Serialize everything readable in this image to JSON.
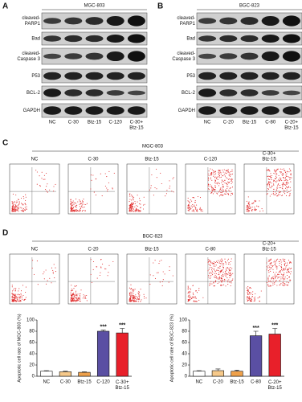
{
  "panels": [
    {
      "label": "A",
      "title": "MGC-803",
      "proteins": [
        [
          "cleaved-",
          "PARP1"
        ],
        [
          "Bad"
        ],
        [
          "cleaved-",
          "Caspase 3"
        ],
        [
          "P53"
        ],
        [
          "BCL-2"
        ],
        [
          "GAPDH"
        ]
      ],
      "lanes": [
        [
          "NC"
        ],
        [
          "C-30"
        ],
        [
          "Btz-15"
        ],
        [
          "C-120"
        ],
        [
          "C-30+",
          "Btz-15"
        ]
      ]
    },
    {
      "label": "B",
      "title": "BGC-823",
      "proteins": [
        [
          "cleaved-",
          "PARP1"
        ],
        [
          "Bad"
        ],
        [
          "cleaved-",
          "Caspase 3"
        ],
        [
          "P53"
        ],
        [
          "BCL-2"
        ],
        [
          "GAPDH"
        ]
      ],
      "lanes": [
        [
          "NC"
        ],
        [
          "C-20"
        ],
        [
          "Btz-15"
        ],
        [
          "C-80"
        ],
        [
          "C-20+",
          "Btz-15"
        ]
      ]
    }
  ],
  "flow": [
    {
      "label": "C",
      "title": "MGC-803",
      "plots": [
        [
          "NC"
        ],
        [
          "C-30"
        ],
        [
          "Btz-15"
        ],
        [
          "C-120"
        ],
        [
          "C-30+",
          "Btz-15"
        ]
      ]
    },
    {
      "label": "D",
      "title": "BGC-823",
      "plots": [
        [
          "NC"
        ],
        [
          "C-20"
        ],
        [
          "Btz-15"
        ],
        [
          "C-80"
        ],
        [
          "C-20+",
          "Btz-15"
        ]
      ]
    }
  ],
  "chart_data": [
    {
      "type": "bar",
      "y_label": "Apoptotic cell rate of MGC-803 (%)",
      "categories": [
        "NC",
        "C-30",
        "Btz-15",
        "C-120",
        "C-30+ Btz-15"
      ],
      "values": [
        9,
        8,
        7,
        80,
        77
      ],
      "errors": [
        1,
        1,
        1,
        2,
        8
      ],
      "colors": [
        "#ffffff",
        "#f6c98a",
        "#eea04a",
        "#5a4fa3",
        "#e8202a"
      ],
      "annotations": [
        {
          "category": "C-120",
          "text": "***"
        },
        {
          "category": "C-30+ Btz-15",
          "text": "***"
        }
      ],
      "ylim": [
        0,
        100
      ],
      "yticks": [
        0,
        20,
        40,
        60,
        80,
        100
      ]
    },
    {
      "type": "bar",
      "y_label": "Apoptotic cell rate of BGC-823 (%)",
      "categories": [
        "NC",
        "C-20",
        "Btz-15",
        "C-80",
        "C-20+ Btz-15"
      ],
      "values": [
        9,
        10,
        9,
        72,
        75
      ],
      "errors": [
        1,
        3,
        2,
        8,
        10
      ],
      "colors": [
        "#ffffff",
        "#f6c98a",
        "#eea04a",
        "#5a4fa3",
        "#e8202a"
      ],
      "annotations": [
        {
          "category": "C-80",
          "text": "***"
        },
        {
          "category": "C-20+ Btz-15",
          "text": "***"
        }
      ],
      "ylim": [
        0,
        100
      ],
      "yticks": [
        0,
        20,
        40,
        60,
        80,
        100
      ]
    }
  ]
}
